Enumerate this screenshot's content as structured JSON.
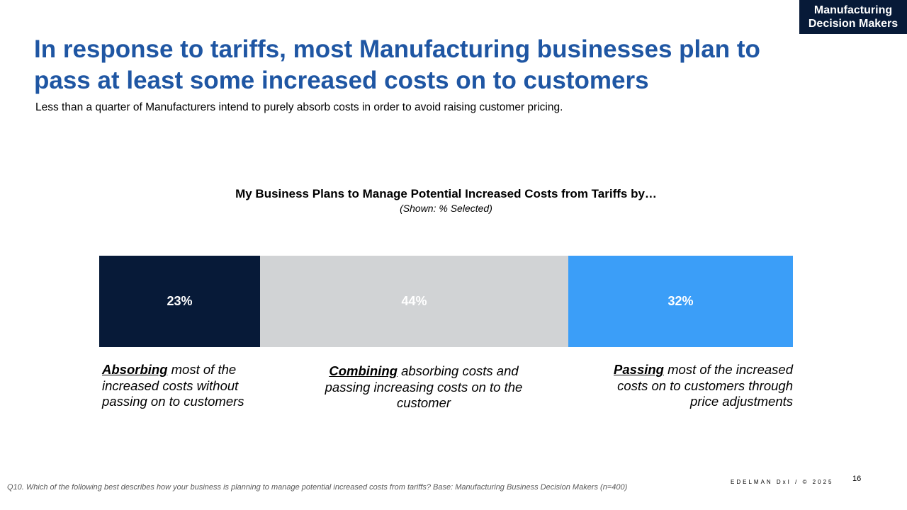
{
  "badge": {
    "line1": "Manufacturing",
    "line2": "Decision Makers"
  },
  "header": {
    "title": "In response to tariffs, most Manufacturing businesses plan to pass at least some increased costs on to customers",
    "subtitle": "Less than a quarter of Manufacturers intend to purely absorb costs in order to avoid raising customer pricing."
  },
  "chart_data": {
    "type": "bar",
    "stacked": true,
    "orientation": "horizontal",
    "title": "My Business Plans to Manage Potential Increased Costs from Tariffs by…",
    "subtitle": "(Shown: % Selected)",
    "categories": [
      "Absorbing",
      "Combining",
      "Passing"
    ],
    "values": [
      23,
      44,
      32
    ],
    "labels": [
      "23%",
      "44%",
      "32%"
    ],
    "colors": [
      "#071a38",
      "#d1d3d5",
      "#3b9ef8"
    ],
    "captions": [
      {
        "bold": "Absorbing",
        "rest": " most of the increased costs without passing on to customers"
      },
      {
        "bold": "Combining",
        "rest": " absorbing costs and passing increasing costs on to the customer"
      },
      {
        "bold": "Passing",
        "rest": " most of the increased costs on to customers through price adjustments"
      }
    ]
  },
  "footer": {
    "footnote": "Q10. Which of the following best describes how your business is planning to manage potential increased costs from tariffs? Base: Manufacturing Business Decision Makers  (n=400)",
    "copyright": "EDELMAN DxI / © 2025",
    "page": "16"
  }
}
